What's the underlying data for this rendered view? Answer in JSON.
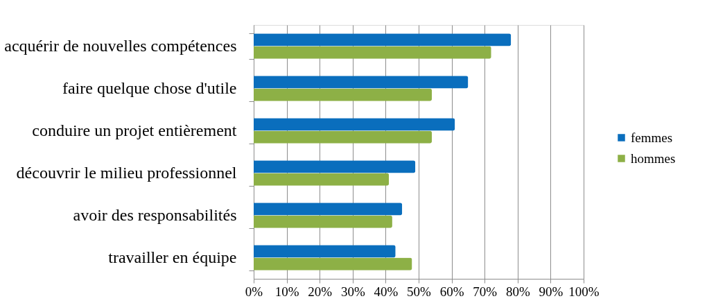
{
  "chart_data": {
    "type": "bar",
    "orientation": "horizontal",
    "categories": [
      "acquérir de nouvelles compétences",
      "faire quelque chose d'utile",
      "conduire un projet entièrement",
      "découvrir le milieu professionnel",
      "avoir des responsabilités",
      "travailler en équipe"
    ],
    "series": [
      {
        "name": "femmes",
        "color": "#0a6ebd",
        "values": [
          78,
          65,
          61,
          49,
          45,
          43
        ]
      },
      {
        "name": "hommes",
        "color": "#8db046",
        "values": [
          72,
          54,
          54,
          41,
          42,
          48
        ]
      }
    ],
    "xlim": [
      0,
      100
    ],
    "xticks": [
      {
        "value": 0,
        "label": "0%"
      },
      {
        "value": 10,
        "label": "10%"
      },
      {
        "value": 20,
        "label": "20%"
      },
      {
        "value": 30,
        "label": "30%"
      },
      {
        "value": 40,
        "label": "40%"
      },
      {
        "value": 50,
        "label": "50%"
      },
      {
        "value": 60,
        "label": "60%"
      },
      {
        "value": 70,
        "label": "70%"
      },
      {
        "value": 80,
        "label": "80%"
      },
      {
        "value": 90,
        "label": "90%"
      },
      {
        "value": 100,
        "label": "100%"
      }
    ],
    "grid": "x",
    "legend": "right"
  }
}
